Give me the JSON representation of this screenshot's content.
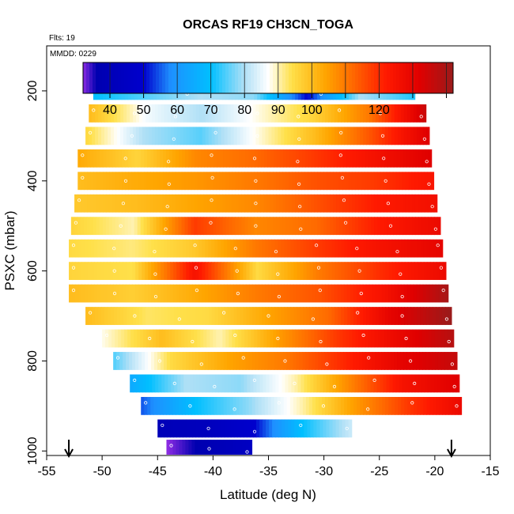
{
  "chart_data": {
    "type": "heatmap",
    "title": "ORCAS RF19 CH3CN_TOGA",
    "flights_label": "Flts: 19",
    "date_label": "MMDD: 0229",
    "xlabel": "Latitude (deg N)",
    "ylabel": "PSXC (mbar)",
    "xlim": [
      -55,
      -15
    ],
    "ylim": [
      1010,
      100
    ],
    "x_ticks": [
      "-55",
      "-50",
      "-45",
      "-40",
      "-35",
      "-30",
      "-25",
      "-20",
      "-15"
    ],
    "y_ticks": [
      "200",
      "400",
      "600",
      "800",
      "1000"
    ],
    "colorbar": {
      "range": [
        32,
        142
      ],
      "tick_labels": [
        "40",
        "50",
        "60",
        "70",
        "80",
        "90",
        "100",
        "120"
      ],
      "tick_values": [
        40,
        50,
        60,
        70,
        80,
        90,
        100,
        120
      ],
      "stops": [
        {
          "v": 32,
          "c": "#8a2be2"
        },
        {
          "v": 36,
          "c": "#0000b0"
        },
        {
          "v": 50,
          "c": "#0000cd"
        },
        {
          "v": 58,
          "c": "#1e90ff"
        },
        {
          "v": 70,
          "c": "#00bfff"
        },
        {
          "v": 80,
          "c": "#b0e0f6"
        },
        {
          "v": 87,
          "c": "#ffffff"
        },
        {
          "v": 94,
          "c": "#ffe04a"
        },
        {
          "v": 104,
          "c": "#ffa500"
        },
        {
          "v": 112,
          "c": "#ff6a00"
        },
        {
          "v": 122,
          "c": "#ff1a00"
        },
        {
          "v": 132,
          "c": "#e00000"
        },
        {
          "v": 142,
          "c": "#9b1a1a"
        }
      ]
    },
    "arrows_latitude": [
      -53,
      -18.5
    ],
    "rows": [
      {
        "p": 200,
        "lat": [
          -50.8,
          -21.8
        ],
        "v": [
          70,
          75,
          80,
          78,
          50,
          80,
          72
        ]
      },
      {
        "p": 250,
        "lat": [
          -51.2,
          -20.8
        ],
        "v": [
          100,
          86,
          80,
          88,
          96,
          110,
          135
        ]
      },
      {
        "p": 300,
        "lat": [
          -51.5,
          -20.5
        ],
        "v": [
          95,
          80,
          75,
          88,
          100,
          115,
          132
        ]
      },
      {
        "p": 350,
        "lat": [
          -52.2,
          -20.3
        ],
        "v": [
          103,
          96,
          108,
          112,
          118,
          125,
          132
        ]
      },
      {
        "p": 400,
        "lat": [
          -52.2,
          -20.1
        ],
        "v": [
          100,
          103,
          106,
          110,
          115,
          118,
          124
        ]
      },
      {
        "p": 450,
        "lat": [
          -52.5,
          -19.8
        ],
        "v": [
          98,
          100,
          104,
          108,
          115,
          122,
          126
        ]
      },
      {
        "p": 500,
        "lat": [
          -52.8,
          -19.5
        ],
        "v": [
          96,
          90,
          118,
          108,
          112,
          122,
          128
        ]
      },
      {
        "p": 550,
        "lat": [
          -53.0,
          -19.3
        ],
        "v": [
          95,
          92,
          98,
          110,
          118,
          125,
          130
        ]
      },
      {
        "p": 600,
        "lat": [
          -53.0,
          -19.0
        ],
        "v": [
          96,
          94,
          125,
          95,
          110,
          120,
          128
        ]
      },
      {
        "p": 650,
        "lat": [
          -53.0,
          -18.8
        ],
        "v": [
          100,
          97,
          103,
          110,
          115,
          125,
          140
        ]
      },
      {
        "p": 700,
        "lat": [
          -51.5,
          -18.5
        ],
        "v": [
          100,
          93,
          95,
          104,
          112,
          130,
          142
        ]
      },
      {
        "p": 750,
        "lat": [
          -50.0,
          -18.3
        ],
        "v": [
          88,
          100,
          90,
          105,
          118,
          128,
          138
        ]
      },
      {
        "p": 800,
        "lat": [
          -49.0,
          -18.0
        ],
        "v": [
          75,
          95,
          104,
          110,
          120,
          130,
          136
        ]
      },
      {
        "p": 850,
        "lat": [
          -47.5,
          -17.8
        ],
        "v": [
          65,
          80,
          78,
          90,
          108,
          125,
          132
        ]
      },
      {
        "p": 900,
        "lat": [
          -46.5,
          -17.6
        ],
        "v": [
          55,
          70,
          78,
          90,
          105,
          118,
          128
        ]
      },
      {
        "p": 950,
        "lat": [
          -45.0,
          -27.5
        ],
        "v": [
          40,
          42,
          50,
          70,
          82
        ]
      },
      {
        "p": 995,
        "lat": [
          -44.2,
          -36.5
        ],
        "v": [
          32,
          36,
          40,
          45
        ]
      }
    ]
  }
}
